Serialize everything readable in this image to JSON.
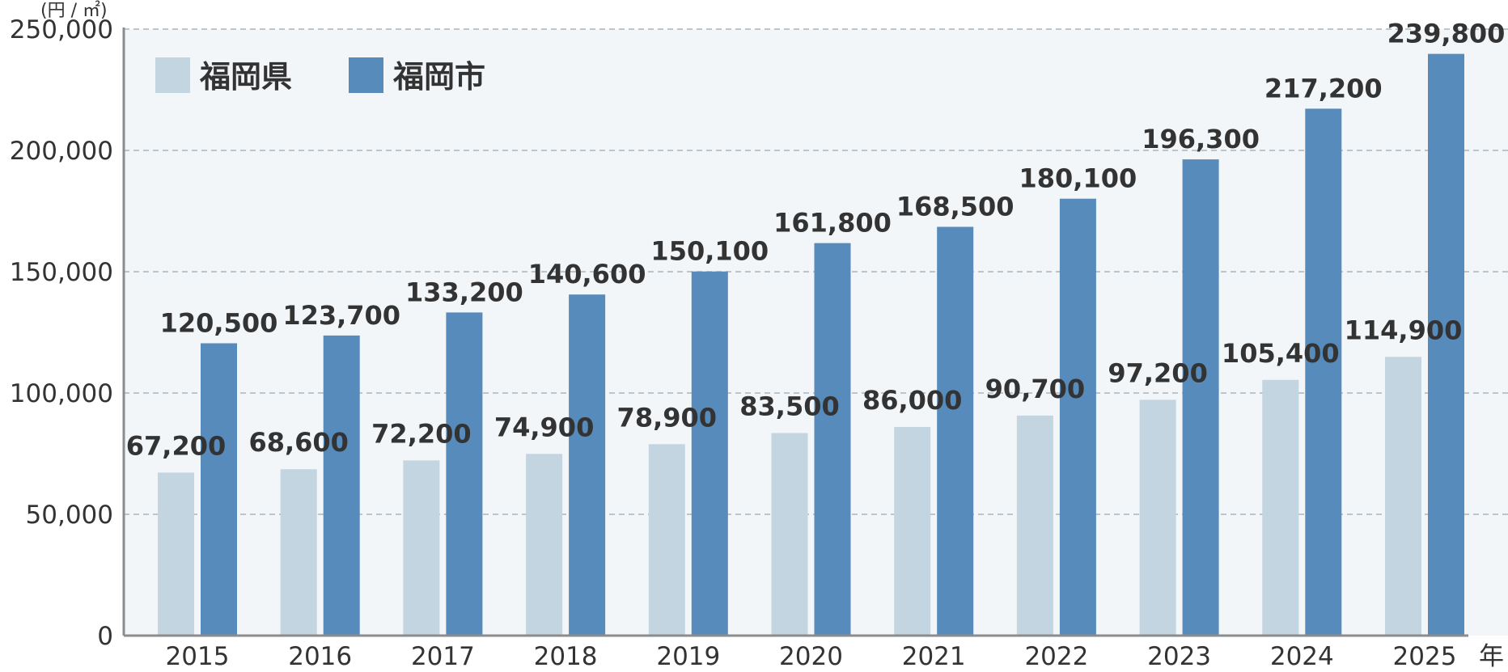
{
  "chart_data": {
    "type": "bar",
    "y_unit": "(円 / ㎡)",
    "x_unit": "年",
    "categories": [
      "2015",
      "2016",
      "2017",
      "2018",
      "2019",
      "2020",
      "2021",
      "2022",
      "2023",
      "2024",
      "2025"
    ],
    "series": [
      {
        "name": "福岡県",
        "color": "#c3d5e1",
        "values": [
          67200,
          68600,
          72200,
          74900,
          78900,
          83500,
          86000,
          90700,
          97200,
          105400,
          114900
        ],
        "labels": [
          "67,200",
          "68,600",
          "72,200",
          "74,900",
          "78,900",
          "83,500",
          "86,000",
          "90,700",
          "97,200",
          "105,400",
          "114,900"
        ]
      },
      {
        "name": "福岡市",
        "color": "#568bbb",
        "values": [
          120500,
          123700,
          133200,
          140600,
          150100,
          161800,
          168500,
          180100,
          196300,
          217200,
          239800
        ],
        "labels": [
          "120,500",
          "123,700",
          "133,200",
          "140,600",
          "150,100",
          "161,800",
          "168,500",
          "180,100",
          "196,300",
          "217,200",
          "239,800"
        ]
      }
    ],
    "ylim": [
      0,
      250000
    ],
    "yticks": [
      0,
      50000,
      100000,
      150000,
      200000,
      250000
    ],
    "ytick_labels": [
      "0",
      "50,000",
      "100,000",
      "150,000",
      "200,000",
      "250,000"
    ],
    "grid": true,
    "legend": "top-left",
    "plot_background": "#f2f6f9",
    "grid_color": "#a9b3bd",
    "axis_color": "#8c8c8c"
  }
}
